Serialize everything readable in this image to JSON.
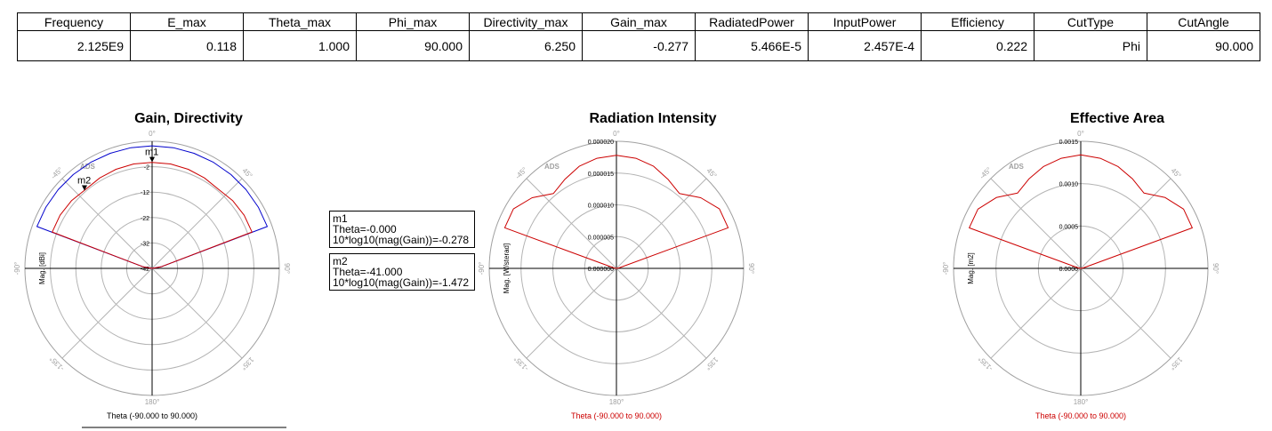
{
  "table": {
    "headers": [
      "Frequency",
      "E_max",
      "Theta_max",
      "Phi_max",
      "Directivity_max",
      "Gain_max",
      "RadiatedPower",
      "InputPower",
      "Efficiency",
      "CutType",
      "CutAngle"
    ],
    "values": [
      "2.125E9",
      "0.118",
      "1.000",
      "90.000",
      "6.250",
      "-0.277",
      "5.466E-5",
      "2.457E-4",
      "0.222",
      "Phi",
      "90.000"
    ]
  },
  "ads_label": "ADS",
  "chart_data": [
    {
      "type": "polar-line",
      "title": "Gain, Directivity",
      "ylabel": "Mag. [dBi]",
      "xlabel": "Theta (-90.000 to 90.000)",
      "xlabel_color": "#000000",
      "angle_labels": [
        "0°",
        "45°",
        "90°",
        "135°",
        "180°",
        "-135°",
        "-90°",
        "-45°"
      ],
      "radial_range": [
        -42,
        8
      ],
      "radial_ticks": [
        -2,
        -12,
        -22,
        -32,
        -42
      ],
      "radial_tick_labels": [
        "-2",
        "-12",
        "-22",
        "-32",
        "-42"
      ],
      "series": [
        {
          "color": "#0000cc",
          "theta": [
            -90,
            -80,
            -70,
            -60,
            -50,
            -40,
            -30,
            -20,
            -10,
            0,
            10,
            20,
            30,
            40,
            50,
            60,
            70,
            80,
            90
          ],
          "values": [
            -42,
            -38.5,
            6.2,
            6.2,
            6.2,
            6.2,
            6.2,
            6.2,
            6.2,
            6.2,
            6.2,
            6.2,
            6.2,
            6.2,
            6.2,
            6.2,
            6.2,
            -38.5,
            -42
          ]
        },
        {
          "color": "#cc0000",
          "theta": [
            -90,
            -80,
            -70,
            -60,
            -50,
            -40,
            -30,
            -20,
            -10,
            0,
            10,
            20,
            30,
            40,
            50,
            60,
            70,
            80,
            90
          ],
          "values": [
            -42,
            -38.5,
            -0.2,
            -0.2,
            -0.6,
            -1.4,
            -0.9,
            -0.5,
            -0.3,
            -0.278,
            -0.3,
            -0.5,
            -0.9,
            -1.4,
            -0.6,
            -0.2,
            -0.2,
            -38.5,
            -42
          ]
        }
      ],
      "markers": [
        {
          "label": "m1",
          "theta": 0,
          "value": -0.278,
          "lines": [
            "m1",
            "Theta=-0.000",
            "10*log10(mag(Gain))=-0.278"
          ]
        },
        {
          "label": "m2",
          "theta": -41,
          "value": -1.472,
          "lines": [
            "m2",
            "Theta=-41.000",
            "10*log10(mag(Gain))=-1.472"
          ]
        }
      ]
    },
    {
      "type": "polar-line",
      "title": "Radiation Intensity",
      "ylabel": "Mag. [W/sterad]",
      "xlabel": "Theta (-90.000 to 90.000)",
      "xlabel_color": "#cc0000",
      "angle_labels": [
        "0°",
        "45°",
        "90°",
        "135°",
        "180°",
        "-135°",
        "-90°",
        "-45°"
      ],
      "radial_range": [
        0,
        2e-05
      ],
      "radial_ticks": [
        0,
        5e-06,
        1e-05,
        1.5e-05,
        2e-05
      ],
      "radial_tick_labels": [
        "0.000000",
        "0.000005",
        "0.000010",
        "0.000015",
        "0.000020"
      ],
      "series": [
        {
          "color": "#cc0000",
          "theta": [
            -90,
            -80,
            -70,
            -60,
            -50,
            -40,
            -30,
            -20,
            -10,
            0,
            10,
            20,
            30,
            40,
            50,
            60,
            70,
            80,
            90
          ],
          "values": [
            0,
            4e-07,
            1.87e-05,
            1.87e-05,
            1.73e-05,
            1.54e-05,
            1.62e-05,
            1.71e-05,
            1.76e-05,
            1.78e-05,
            1.76e-05,
            1.71e-05,
            1.62e-05,
            1.54e-05,
            1.73e-05,
            1.87e-05,
            1.87e-05,
            4e-07,
            0
          ]
        }
      ]
    },
    {
      "type": "polar-line",
      "title": "Effective Area",
      "ylabel": "Mag. [m2]",
      "xlabel": "Theta (-90.000 to 90.000)",
      "xlabel_color": "#cc0000",
      "angle_labels": [
        "0°",
        "45°",
        "90°",
        "135°",
        "180°",
        "-135°",
        "-90°",
        "-45°"
      ],
      "radial_range": [
        0,
        0.0015
      ],
      "radial_ticks": [
        0,
        0.0005,
        0.001,
        0.0015
      ],
      "radial_tick_labels": [
        "0.0000",
        "0.0005",
        "0.0010",
        "0.0015"
      ],
      "series": [
        {
          "color": "#cc0000",
          "theta": [
            -90,
            -80,
            -70,
            -60,
            -50,
            -40,
            -30,
            -20,
            -10,
            0,
            10,
            20,
            30,
            40,
            50,
            60,
            70,
            80,
            90
          ],
          "values": [
            0,
            3e-05,
            0.0014,
            0.0014,
            0.0013,
            0.00116,
            0.00122,
            0.00128,
            0.00132,
            0.00134,
            0.00132,
            0.00128,
            0.00122,
            0.00116,
            0.0013,
            0.0014,
            0.0014,
            3e-05,
            0
          ]
        }
      ]
    }
  ]
}
